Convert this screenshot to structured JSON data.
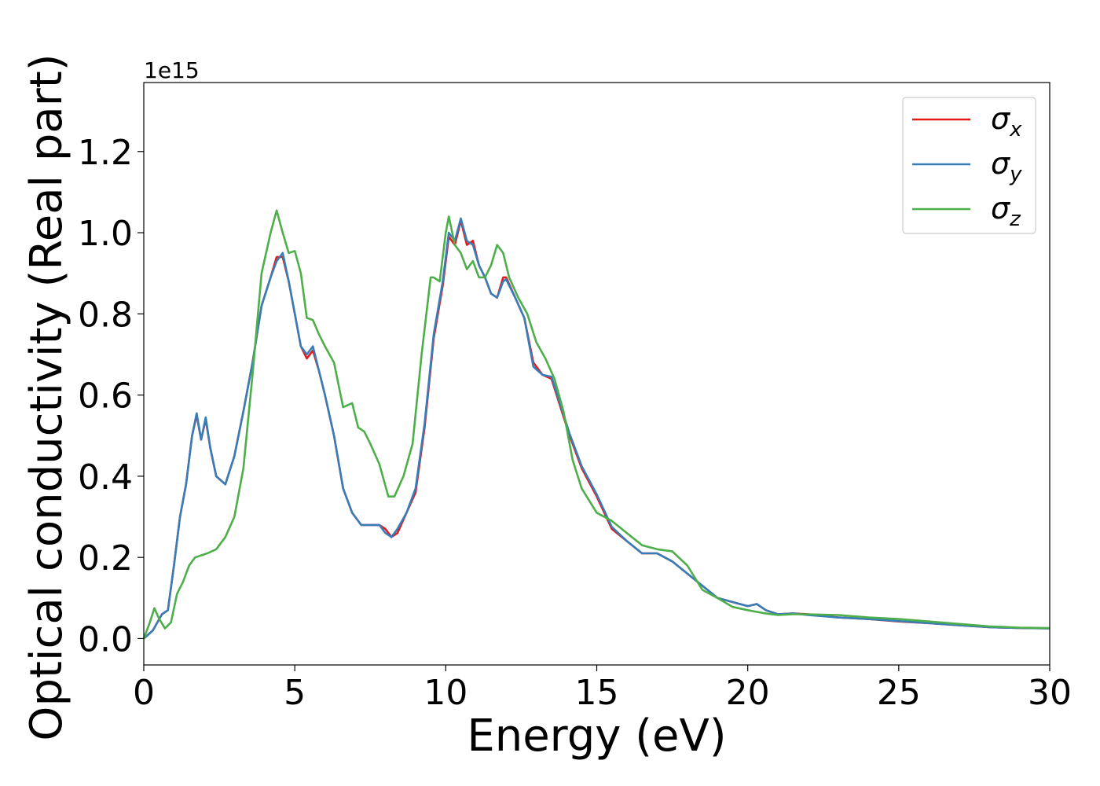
{
  "chart_data": {
    "type": "line",
    "xlabel": "Energy (eV)",
    "ylabel": "Optical conductivity (Real part)",
    "y_offset_label": "1e15",
    "xlim": [
      0,
      30
    ],
    "ylim": [
      -0.065,
      1.37
    ],
    "xticks": [
      0,
      5,
      10,
      15,
      20,
      25,
      30
    ],
    "xtick_labels": [
      "0",
      "5",
      "10",
      "15",
      "20",
      "25",
      "30"
    ],
    "yticks": [
      0.0,
      0.2,
      0.4,
      0.6,
      0.8,
      1.0,
      1.2
    ],
    "ytick_labels": [
      "0.0",
      "0.2",
      "0.4",
      "0.6",
      "0.8",
      "1.0",
      "1.2"
    ],
    "grid": false,
    "legend_position": "top-right",
    "series": [
      {
        "name": "σx",
        "legend_base": "σ",
        "legend_sub": "x",
        "color": "#e41a1c",
        "x": [
          0,
          0.3,
          0.6,
          0.8,
          1.0,
          1.2,
          1.4,
          1.6,
          1.75,
          1.9,
          2.05,
          2.2,
          2.4,
          2.7,
          3.0,
          3.3,
          3.6,
          3.9,
          4.2,
          4.4,
          4.6,
          4.8,
          5.0,
          5.2,
          5.4,
          5.6,
          5.8,
          6.0,
          6.3,
          6.6,
          6.9,
          7.2,
          7.5,
          7.8,
          8.0,
          8.2,
          8.4,
          8.7,
          9.0,
          9.3,
          9.6,
          9.9,
          10.1,
          10.3,
          10.5,
          10.7,
          10.9,
          11.1,
          11.3,
          11.5,
          11.7,
          11.9,
          12.0,
          12.3,
          12.6,
          12.9,
          13.2,
          13.5,
          13.8,
          14.1,
          14.5,
          15.0,
          15.5,
          16.0,
          16.5,
          17.0,
          17.5,
          18.0,
          18.5,
          19.0,
          19.5,
          20.0,
          20.3,
          20.6,
          21.0,
          21.5,
          22.0,
          23.0,
          24.0,
          25.0,
          26.0,
          27.0,
          28.0,
          29.0,
          30.0
        ],
        "values": [
          0.0,
          0.02,
          0.06,
          0.07,
          0.18,
          0.3,
          0.38,
          0.5,
          0.55,
          0.49,
          0.54,
          0.47,
          0.4,
          0.38,
          0.45,
          0.56,
          0.68,
          0.82,
          0.89,
          0.94,
          0.94,
          0.88,
          0.8,
          0.72,
          0.69,
          0.71,
          0.66,
          0.6,
          0.5,
          0.37,
          0.31,
          0.28,
          0.28,
          0.28,
          0.27,
          0.25,
          0.26,
          0.31,
          0.36,
          0.52,
          0.74,
          0.87,
          0.99,
          0.97,
          1.03,
          0.97,
          0.98,
          0.92,
          0.89,
          0.85,
          0.84,
          0.89,
          0.89,
          0.84,
          0.79,
          0.68,
          0.65,
          0.64,
          0.57,
          0.5,
          0.42,
          0.35,
          0.27,
          0.24,
          0.21,
          0.21,
          0.19,
          0.16,
          0.13,
          0.1,
          0.09,
          0.08,
          0.085,
          0.07,
          0.06,
          0.062,
          0.06,
          0.052,
          0.048,
          0.042,
          0.038,
          0.033,
          0.028,
          0.026,
          0.025
        ]
      },
      {
        "name": "σy",
        "legend_base": "σ",
        "legend_sub": "y",
        "color": "#377eb8",
        "x": [
          0,
          0.3,
          0.6,
          0.8,
          1.0,
          1.2,
          1.4,
          1.6,
          1.75,
          1.9,
          2.05,
          2.2,
          2.4,
          2.7,
          3.0,
          3.3,
          3.6,
          3.9,
          4.2,
          4.4,
          4.6,
          4.8,
          5.0,
          5.2,
          5.4,
          5.6,
          5.8,
          6.0,
          6.3,
          6.6,
          6.9,
          7.2,
          7.5,
          7.8,
          8.0,
          8.2,
          8.4,
          8.7,
          9.0,
          9.3,
          9.6,
          9.9,
          10.1,
          10.3,
          10.5,
          10.7,
          10.9,
          11.1,
          11.3,
          11.5,
          11.7,
          11.9,
          12.0,
          12.3,
          12.6,
          12.9,
          13.2,
          13.5,
          13.8,
          14.1,
          14.5,
          15.0,
          15.5,
          16.0,
          16.5,
          17.0,
          17.5,
          18.0,
          18.5,
          19.0,
          19.5,
          20.0,
          20.3,
          20.6,
          21.0,
          21.5,
          22.0,
          23.0,
          24.0,
          25.0,
          26.0,
          27.0,
          28.0,
          29.0,
          30.0
        ],
        "values": [
          0.0,
          0.02,
          0.06,
          0.07,
          0.18,
          0.3,
          0.38,
          0.5,
          0.555,
          0.49,
          0.545,
          0.47,
          0.4,
          0.38,
          0.45,
          0.56,
          0.68,
          0.82,
          0.89,
          0.93,
          0.95,
          0.88,
          0.8,
          0.72,
          0.7,
          0.72,
          0.66,
          0.6,
          0.5,
          0.37,
          0.31,
          0.28,
          0.28,
          0.28,
          0.26,
          0.25,
          0.27,
          0.31,
          0.37,
          0.53,
          0.75,
          0.88,
          1.0,
          0.98,
          1.035,
          0.98,
          0.97,
          0.92,
          0.89,
          0.85,
          0.84,
          0.88,
          0.885,
          0.84,
          0.79,
          0.67,
          0.65,
          0.645,
          0.575,
          0.505,
          0.425,
          0.355,
          0.275,
          0.24,
          0.21,
          0.21,
          0.19,
          0.16,
          0.13,
          0.1,
          0.09,
          0.08,
          0.085,
          0.07,
          0.06,
          0.062,
          0.058,
          0.052,
          0.048,
          0.043,
          0.038,
          0.033,
          0.028,
          0.026,
          0.025
        ]
      },
      {
        "name": "σz",
        "legend_base": "σ",
        "legend_sub": "z",
        "color": "#4daf4a",
        "x": [
          0,
          0.2,
          0.35,
          0.5,
          0.7,
          0.9,
          1.1,
          1.3,
          1.5,
          1.7,
          1.9,
          2.1,
          2.4,
          2.7,
          3.0,
          3.3,
          3.6,
          3.9,
          4.2,
          4.4,
          4.6,
          4.8,
          5.0,
          5.2,
          5.4,
          5.6,
          5.8,
          6.0,
          6.3,
          6.6,
          6.9,
          7.1,
          7.3,
          7.5,
          7.8,
          8.1,
          8.3,
          8.6,
          8.9,
          9.2,
          9.5,
          9.6,
          9.8,
          10.0,
          10.1,
          10.3,
          10.5,
          10.7,
          10.9,
          11.1,
          11.3,
          11.5,
          11.7,
          11.9,
          12.1,
          12.4,
          12.7,
          13.0,
          13.3,
          13.6,
          13.9,
          14.2,
          14.5,
          15.0,
          15.5,
          16.0,
          16.5,
          17.0,
          17.5,
          18.0,
          18.5,
          19.0,
          19.5,
          20.0,
          20.5,
          21.0,
          21.5,
          22.0,
          23.0,
          24.0,
          25.0,
          26.0,
          27.0,
          28.0,
          29.0,
          30.0
        ],
        "values": [
          0.0,
          0.04,
          0.075,
          0.05,
          0.025,
          0.04,
          0.11,
          0.14,
          0.18,
          0.2,
          0.205,
          0.21,
          0.22,
          0.25,
          0.3,
          0.42,
          0.65,
          0.9,
          1.0,
          1.055,
          1.0,
          0.95,
          0.955,
          0.9,
          0.79,
          0.785,
          0.75,
          0.72,
          0.68,
          0.57,
          0.58,
          0.52,
          0.51,
          0.48,
          0.43,
          0.35,
          0.35,
          0.4,
          0.48,
          0.7,
          0.89,
          0.89,
          0.88,
          1.0,
          1.04,
          0.97,
          0.95,
          0.91,
          0.93,
          0.89,
          0.89,
          0.92,
          0.97,
          0.95,
          0.89,
          0.84,
          0.8,
          0.73,
          0.69,
          0.64,
          0.56,
          0.44,
          0.37,
          0.31,
          0.29,
          0.26,
          0.23,
          0.22,
          0.215,
          0.18,
          0.12,
          0.1,
          0.078,
          0.07,
          0.063,
          0.058,
          0.06,
          0.06,
          0.058,
          0.052,
          0.048,
          0.042,
          0.036,
          0.03,
          0.027,
          0.026
        ]
      }
    ]
  }
}
